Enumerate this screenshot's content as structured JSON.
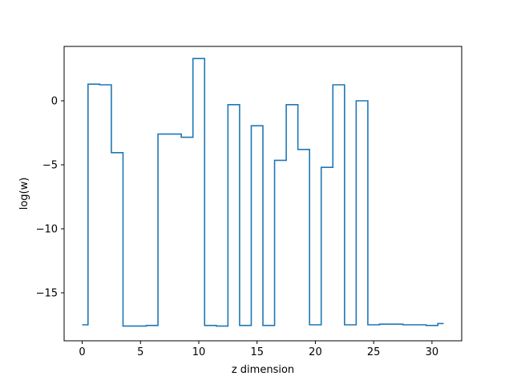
{
  "chart_data": {
    "type": "line",
    "drawstyle": "steps-mid",
    "title": "",
    "xlabel": "z dimension",
    "ylabel": "log(w)",
    "xlim": [
      -1.55,
      32.55
    ],
    "ylim": [
      -18.75,
      4.25
    ],
    "xticks": [
      0,
      5,
      10,
      15,
      20,
      25,
      30
    ],
    "xtick_labels": [
      "0",
      "5",
      "10",
      "15",
      "20",
      "25",
      "30"
    ],
    "yticks": [
      -15,
      -10,
      -5,
      0
    ],
    "ytick_labels": [
      "−15",
      "−10",
      "−5",
      "0"
    ],
    "grid": false,
    "legend": "none",
    "line_color": "#1f77b4",
    "series": [
      {
        "x": [
          0,
          1,
          2,
          3,
          4,
          5,
          6,
          7,
          8,
          9,
          10,
          11,
          12,
          13,
          14,
          15,
          16,
          17,
          18,
          19,
          20,
          21,
          22,
          23,
          24,
          25,
          26,
          27,
          28,
          29,
          30,
          31
        ],
        "values": [
          -17.5,
          1.3,
          1.25,
          -4.05,
          -17.6,
          -17.6,
          -17.55,
          -2.6,
          -2.6,
          -2.85,
          3.3,
          -17.55,
          -17.6,
          -0.3,
          -17.55,
          -1.95,
          -17.55,
          -4.65,
          -0.3,
          -3.8,
          -17.5,
          -5.2,
          1.25,
          -17.5,
          0.0,
          -17.5,
          -17.45,
          -17.45,
          -17.5,
          -17.5,
          -17.55,
          -17.4
        ]
      }
    ]
  }
}
